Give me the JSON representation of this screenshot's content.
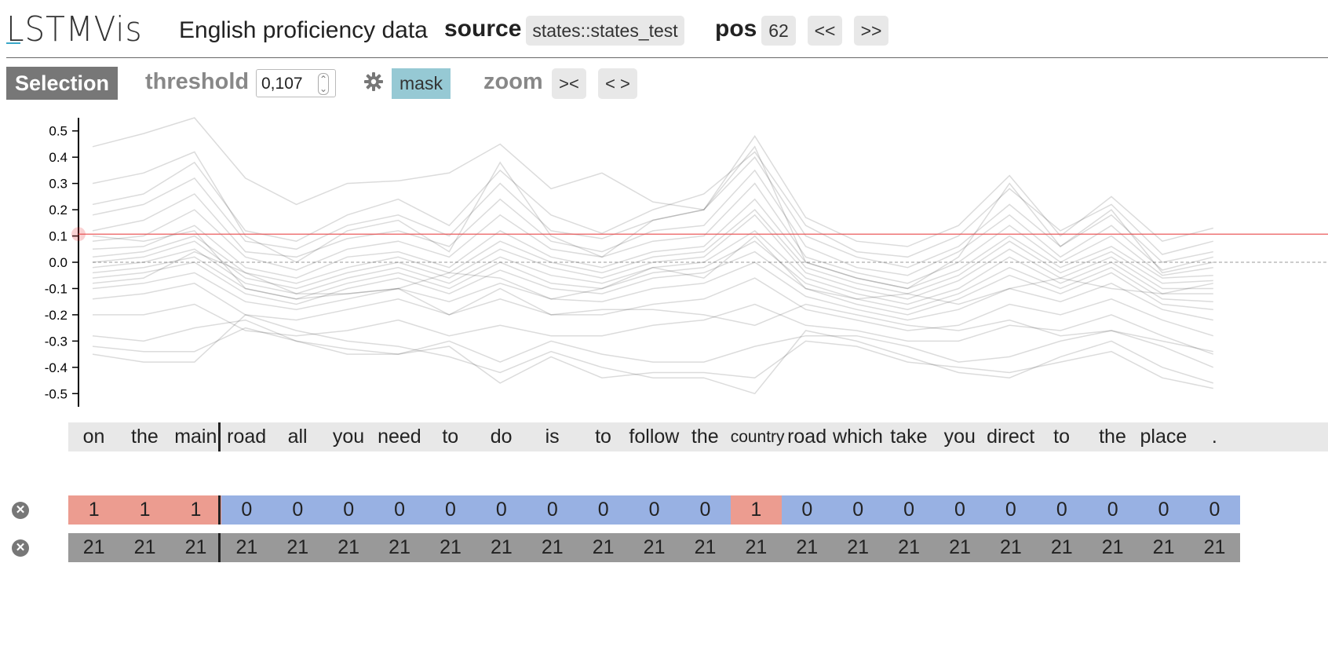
{
  "header": {
    "logo": "LSTMVis",
    "title": "English proficiency data",
    "source_label": "source",
    "source_value": "states::states_test",
    "pos_label": "pos",
    "pos_value": "62",
    "prev_label": "<<",
    "next_label": ">>"
  },
  "toolbar": {
    "selection_label": "Selection",
    "threshold_label": "threshold",
    "threshold_value": "0,107",
    "settings_icon": "gear-icon",
    "mask_label": "mask",
    "zoom_label": "zoom",
    "zoom_in_label": "><",
    "zoom_out_label": "< >"
  },
  "chart_data": {
    "type": "line",
    "ylim": [
      -0.55,
      0.55
    ],
    "yticks": [
      "0.5",
      "0.4",
      "0.3",
      "0.2",
      "0.1",
      "0.0",
      "-0.1",
      "-0.2",
      "-0.3",
      "-0.4",
      "-0.5"
    ],
    "threshold": 0.107,
    "threshold_color": "#e8484a",
    "line_color": "#000000",
    "categories": [
      "on",
      "the",
      "main",
      "road",
      "all",
      "you",
      "need",
      "to",
      "do",
      "is",
      "to",
      "follow",
      "the",
      "country",
      "road",
      "which",
      "take",
      "you",
      "direct",
      "to",
      "the",
      "place",
      "."
    ],
    "series": [
      {
        "values": [
          0.44,
          0.49,
          0.55,
          0.32,
          0.22,
          0.3,
          0.31,
          0.34,
          0.45,
          0.28,
          0.34,
          0.23,
          0.2,
          0.48,
          0.17,
          0.08,
          0.06,
          0.14,
          0.33,
          0.1,
          0.25,
          0.08,
          0.13
        ]
      },
      {
        "values": [
          0.22,
          0.26,
          0.38,
          0.12,
          0.08,
          0.18,
          0.24,
          0.14,
          0.35,
          0.18,
          0.11,
          0.2,
          0.26,
          0.42,
          0.14,
          0.04,
          0.02,
          0.1,
          0.28,
          0.12,
          0.22,
          0.03,
          0.08
        ]
      },
      {
        "values": [
          0.18,
          0.22,
          0.32,
          0.08,
          0.05,
          0.14,
          0.18,
          0.1,
          0.3,
          0.12,
          0.09,
          0.16,
          0.2,
          0.4,
          0.1,
          0.02,
          -0.02,
          0.06,
          0.22,
          0.06,
          0.18,
          0.0,
          0.04
        ]
      },
      {
        "values": [
          0.12,
          0.16,
          0.26,
          0.04,
          0.02,
          0.09,
          0.12,
          0.06,
          0.24,
          0.08,
          0.04,
          0.12,
          0.14,
          0.35,
          0.06,
          -0.02,
          -0.05,
          0.04,
          0.18,
          0.02,
          0.14,
          -0.03,
          0.02
        ]
      },
      {
        "values": [
          0.08,
          0.1,
          0.2,
          0.02,
          -0.03,
          0.05,
          0.08,
          0.02,
          0.18,
          0.05,
          0.02,
          0.08,
          0.1,
          0.3,
          0.02,
          -0.04,
          -0.08,
          0.0,
          0.14,
          0.0,
          0.1,
          -0.05,
          -0.02
        ]
      },
      {
        "values": [
          0.05,
          0.06,
          0.14,
          -0.02,
          -0.06,
          0.02,
          0.04,
          -0.02,
          0.12,
          0.02,
          -0.02,
          0.04,
          0.06,
          0.24,
          0.0,
          -0.06,
          -0.1,
          -0.03,
          0.1,
          -0.02,
          0.06,
          -0.06,
          -0.05
        ]
      },
      {
        "values": [
          0.02,
          0.04,
          0.1,
          -0.04,
          -0.08,
          -0.02,
          0.02,
          -0.04,
          0.08,
          0.0,
          -0.04,
          0.02,
          0.04,
          0.2,
          -0.02,
          -0.08,
          -0.12,
          -0.05,
          0.08,
          -0.04,
          0.04,
          -0.08,
          -0.07
        ]
      },
      {
        "values": [
          0.0,
          0.02,
          0.08,
          -0.06,
          -0.1,
          -0.04,
          0.0,
          -0.06,
          0.05,
          -0.02,
          -0.06,
          0.0,
          0.02,
          0.18,
          -0.04,
          -0.1,
          -0.14,
          -0.07,
          0.05,
          -0.06,
          0.02,
          -0.1,
          -0.1
        ]
      },
      {
        "values": [
          -0.02,
          0.0,
          0.05,
          -0.08,
          -0.12,
          -0.06,
          -0.02,
          -0.08,
          0.02,
          -0.05,
          -0.08,
          -0.02,
          0.0,
          0.12,
          -0.06,
          -0.12,
          -0.16,
          -0.1,
          0.02,
          -0.08,
          0.0,
          -0.12,
          -0.12
        ]
      },
      {
        "values": [
          -0.04,
          -0.02,
          0.02,
          -0.1,
          -0.14,
          -0.08,
          -0.04,
          -0.1,
          0.0,
          -0.08,
          -0.1,
          -0.04,
          -0.02,
          0.08,
          -0.08,
          -0.14,
          -0.18,
          -0.12,
          -0.02,
          -0.1,
          -0.02,
          -0.14,
          -0.15
        ]
      },
      {
        "values": [
          -0.06,
          -0.04,
          0.0,
          -0.12,
          -0.16,
          -0.1,
          -0.06,
          -0.12,
          -0.03,
          -0.1,
          -0.12,
          -0.06,
          -0.04,
          0.04,
          -0.1,
          -0.16,
          -0.2,
          -0.14,
          -0.05,
          -0.12,
          -0.04,
          -0.16,
          -0.18
        ]
      },
      {
        "values": [
          -0.1,
          -0.08,
          -0.04,
          -0.15,
          -0.18,
          -0.14,
          -0.1,
          -0.15,
          -0.08,
          -0.14,
          -0.15,
          -0.1,
          -0.08,
          0.0,
          -0.13,
          -0.18,
          -0.22,
          -0.18,
          -0.1,
          -0.15,
          -0.08,
          -0.18,
          -0.22
        ]
      },
      {
        "values": [
          -0.14,
          -0.12,
          -0.08,
          -0.2,
          -0.22,
          -0.18,
          -0.14,
          -0.2,
          -0.14,
          -0.2,
          -0.2,
          -0.16,
          -0.14,
          -0.06,
          -0.18,
          -0.22,
          -0.26,
          -0.24,
          -0.16,
          -0.2,
          -0.14,
          -0.22,
          -0.28
        ]
      },
      {
        "values": [
          -0.2,
          -0.2,
          -0.16,
          -0.26,
          -0.28,
          -0.26,
          -0.22,
          -0.28,
          -0.24,
          -0.28,
          -0.28,
          -0.24,
          -0.22,
          -0.16,
          -0.24,
          -0.26,
          -0.3,
          -0.3,
          -0.24,
          -0.26,
          -0.2,
          -0.28,
          -0.35
        ]
      },
      {
        "values": [
          -0.28,
          -0.3,
          -0.25,
          -0.22,
          -0.3,
          -0.35,
          -0.35,
          -0.3,
          -0.38,
          -0.3,
          -0.35,
          -0.38,
          -0.38,
          -0.32,
          -0.28,
          -0.28,
          -0.32,
          -0.38,
          -0.36,
          -0.3,
          -0.26,
          -0.32,
          -0.4
        ]
      },
      {
        "values": [
          -0.35,
          -0.38,
          -0.38,
          -0.2,
          -0.26,
          -0.3,
          -0.32,
          -0.36,
          -0.42,
          -0.34,
          -0.4,
          -0.44,
          -0.44,
          -0.5,
          -0.26,
          -0.3,
          -0.36,
          -0.42,
          -0.44,
          -0.36,
          -0.3,
          -0.4,
          -0.46
        ]
      },
      {
        "values": [
          -0.32,
          -0.34,
          -0.34,
          -0.25,
          -0.3,
          -0.33,
          -0.35,
          -0.32,
          -0.46,
          -0.36,
          -0.44,
          -0.42,
          -0.42,
          -0.44,
          -0.3,
          -0.32,
          -0.38,
          -0.4,
          -0.42,
          -0.38,
          -0.34,
          -0.44,
          -0.48
        ]
      },
      {
        "values": [
          0.3,
          0.34,
          0.42,
          0.1,
          0.0,
          0.12,
          0.16,
          0.04,
          0.38,
          0.1,
          0.02,
          0.16,
          0.2,
          0.44,
          0.0,
          -0.06,
          -0.1,
          0.02,
          0.3,
          0.06,
          0.2,
          -0.04,
          0.0
        ]
      },
      {
        "values": [
          -0.08,
          -0.06,
          0.04,
          -0.04,
          -0.12,
          -0.12,
          -0.1,
          -0.2,
          -0.1,
          -0.2,
          -0.18,
          -0.18,
          -0.2,
          -0.24,
          -0.16,
          -0.2,
          -0.24,
          -0.26,
          -0.22,
          -0.28,
          -0.26,
          -0.3,
          -0.34
        ]
      },
      {
        "values": [
          0.1,
          0.08,
          0.12,
          -0.1,
          -0.14,
          -0.12,
          -0.1,
          -0.04,
          -0.06,
          -0.14,
          -0.1,
          -0.02,
          -0.06,
          0.1,
          -0.1,
          -0.14,
          -0.12,
          -0.16,
          -0.1,
          -0.06,
          -0.1,
          -0.12,
          -0.08
        ]
      }
    ]
  },
  "words": [
    "on",
    "the",
    "main",
    "road",
    "all",
    "you",
    "need",
    "to",
    "do",
    "is",
    "to",
    "follow",
    "the",
    "country",
    "road",
    "which",
    "take",
    "you",
    "direct",
    "to",
    "the",
    "place",
    "."
  ],
  "mask_row": [
    "1",
    "1",
    "1",
    "0",
    "0",
    "0",
    "0",
    "0",
    "0",
    "0",
    "0",
    "0",
    "0",
    "1",
    "0",
    "0",
    "0",
    "0",
    "0",
    "0",
    "0",
    "0",
    "0"
  ],
  "count_row": [
    "21",
    "21",
    "21",
    "21",
    "21",
    "21",
    "21",
    "21",
    "21",
    "21",
    "21",
    "21",
    "21",
    "21",
    "21",
    "21",
    "21",
    "21",
    "21",
    "21",
    "21",
    "21",
    "21"
  ],
  "colors": {
    "mask_on": "#ec9c90",
    "mask_off": "#98b1e3",
    "count_bg": "#999999",
    "mask_button": "#96c9d4"
  },
  "icons": {
    "remove": "close-circle-icon"
  }
}
